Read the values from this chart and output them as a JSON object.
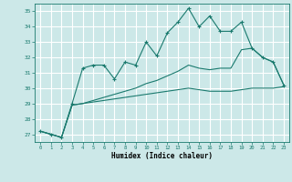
{
  "xlabel": "Humidex (Indice chaleur)",
  "background_color": "#cce8e8",
  "grid_color": "#ffffff",
  "line_color": "#1a7a6e",
  "xlim": [
    -0.5,
    23.5
  ],
  "ylim": [
    26.5,
    35.5
  ],
  "yticks": [
    27,
    28,
    29,
    30,
    31,
    32,
    33,
    34,
    35
  ],
  "xticks": [
    0,
    1,
    2,
    3,
    4,
    5,
    6,
    7,
    8,
    9,
    10,
    11,
    12,
    13,
    14,
    15,
    16,
    17,
    18,
    19,
    20,
    21,
    22,
    23
  ],
  "line1_x": [
    0,
    1,
    2,
    3,
    4,
    5,
    6,
    7,
    8,
    9,
    10,
    11,
    12,
    13,
    14,
    15,
    16,
    17,
    18,
    19,
    20,
    21,
    22,
    23
  ],
  "line1_y": [
    27.2,
    27.0,
    26.8,
    29.0,
    31.3,
    31.5,
    31.5,
    30.6,
    31.7,
    31.5,
    33.0,
    32.1,
    33.6,
    34.3,
    35.2,
    34.0,
    34.7,
    33.7,
    33.7,
    34.3,
    32.6,
    32.0,
    31.7,
    30.2
  ],
  "line2_x": [
    0,
    1,
    2,
    3,
    4,
    5,
    6,
    7,
    8,
    9,
    10,
    11,
    12,
    13,
    14,
    15,
    16,
    17,
    18,
    19,
    20,
    21,
    22,
    23
  ],
  "line2_y": [
    27.2,
    27.0,
    26.8,
    28.9,
    29.0,
    29.1,
    29.2,
    29.3,
    29.4,
    29.5,
    29.6,
    29.7,
    29.8,
    29.9,
    30.0,
    29.9,
    29.8,
    29.8,
    29.8,
    29.9,
    30.0,
    30.0,
    30.0,
    30.1
  ],
  "line3_x": [
    0,
    1,
    2,
    3,
    4,
    5,
    6,
    7,
    8,
    9,
    10,
    11,
    12,
    13,
    14,
    15,
    16,
    17,
    18,
    19,
    20,
    21,
    22,
    23
  ],
  "line3_y": [
    27.2,
    27.0,
    26.8,
    28.9,
    29.0,
    29.2,
    29.4,
    29.6,
    29.8,
    30.0,
    30.3,
    30.5,
    30.8,
    31.1,
    31.5,
    31.3,
    31.2,
    31.3,
    31.3,
    32.5,
    32.6,
    32.0,
    31.7,
    30.2
  ]
}
